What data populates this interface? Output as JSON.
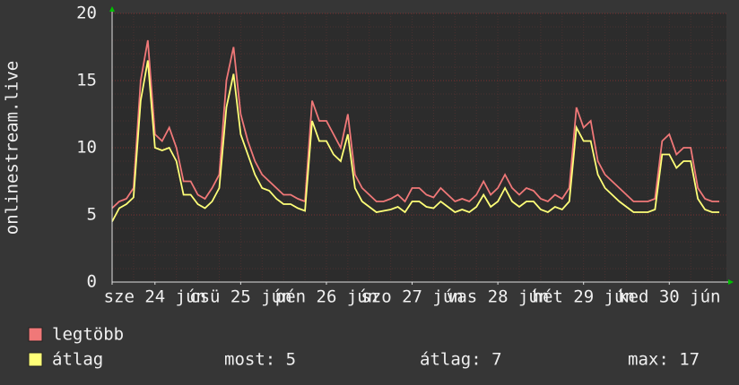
{
  "chart_data": {
    "type": "line",
    "y_label": "onlinestream.live",
    "x": [
      0,
      2,
      4,
      6,
      8,
      10,
      12,
      14,
      16,
      18,
      20,
      22,
      24,
      26,
      28,
      30,
      32,
      34,
      36,
      38,
      40,
      42,
      44,
      46,
      48,
      50,
      52,
      54,
      56,
      58,
      60,
      62,
      64,
      66,
      68,
      70,
      72,
      74,
      76,
      78,
      80,
      82,
      84,
      86,
      88,
      90,
      92,
      94,
      96,
      98,
      100,
      102,
      104,
      106,
      108,
      110,
      112,
      114,
      116,
      118,
      120,
      122,
      124,
      126,
      128,
      130,
      132,
      134,
      136,
      138,
      140,
      142,
      144,
      146,
      148,
      150,
      152,
      154,
      156,
      158,
      160,
      162,
      164,
      166,
      168,
      170
    ],
    "xlim": [
      0,
      172
    ],
    "xticks": [
      {
        "value": 12,
        "label": "sze 24 jún"
      },
      {
        "value": 36,
        "label": "csü 25 jún"
      },
      {
        "value": 60,
        "label": "pén 26 jún"
      },
      {
        "value": 84,
        "label": "szo 27 jún"
      },
      {
        "value": 108,
        "label": "vas 28 jún"
      },
      {
        "value": 132,
        "label": "hét 29 jún"
      },
      {
        "value": 156,
        "label": "ked 30 jún"
      }
    ],
    "ylim": [
      0,
      20
    ],
    "yticks": [
      0,
      5,
      10,
      15,
      20
    ],
    "grid": true,
    "series": [
      {
        "name": "legtöbb",
        "color": "#f07878",
        "values": [
          5.5,
          6,
          6.2,
          7,
          15,
          18,
          11,
          10.5,
          11.5,
          10,
          7.5,
          7.5,
          6.5,
          6.2,
          7,
          8,
          15,
          17.5,
          12.5,
          10.5,
          9,
          8,
          7.5,
          7,
          6.5,
          6.5,
          6.2,
          6,
          13.5,
          12,
          12,
          11,
          10,
          12.5,
          8,
          7,
          6.5,
          6,
          6,
          6.2,
          6.5,
          6,
          7,
          7,
          6.5,
          6.3,
          7,
          6.5,
          6,
          6.2,
          6,
          6.5,
          7.5,
          6.5,
          7,
          8,
          7,
          6.5,
          7,
          6.8,
          6.2,
          6,
          6.5,
          6.2,
          7,
          13,
          11.5,
          12,
          9,
          8,
          7.5,
          7,
          6.5,
          6,
          6,
          6,
          6.2,
          10.5,
          11,
          9.5,
          10,
          10,
          7,
          6.2,
          6,
          6
        ]
      },
      {
        "name": "átlag",
        "color": "#ffff78",
        "values": [
          4.5,
          5.5,
          5.8,
          6.3,
          13.5,
          16.5,
          10,
          9.8,
          10,
          9,
          6.5,
          6.5,
          5.8,
          5.5,
          6,
          7,
          13,
          15.5,
          11,
          9.5,
          8,
          7,
          6.8,
          6.2,
          5.8,
          5.8,
          5.5,
          5.3,
          12,
          10.5,
          10.5,
          9.5,
          9,
          11,
          7,
          6,
          5.6,
          5.2,
          5.3,
          5.4,
          5.6,
          5.2,
          6,
          6,
          5.6,
          5.5,
          6,
          5.6,
          5.2,
          5.4,
          5.2,
          5.6,
          6.5,
          5.6,
          6,
          7,
          6,
          5.6,
          6,
          6,
          5.4,
          5.2,
          5.6,
          5.4,
          6,
          11.5,
          10.5,
          10.5,
          8,
          7,
          6.5,
          6,
          5.6,
          5.2,
          5.2,
          5.2,
          5.4,
          9.5,
          9.5,
          8.5,
          9,
          9,
          6.2,
          5.4,
          5.2,
          5.2
        ]
      }
    ],
    "stats": [
      "most: 5",
      "átlag: 7",
      "max: 17"
    ]
  }
}
